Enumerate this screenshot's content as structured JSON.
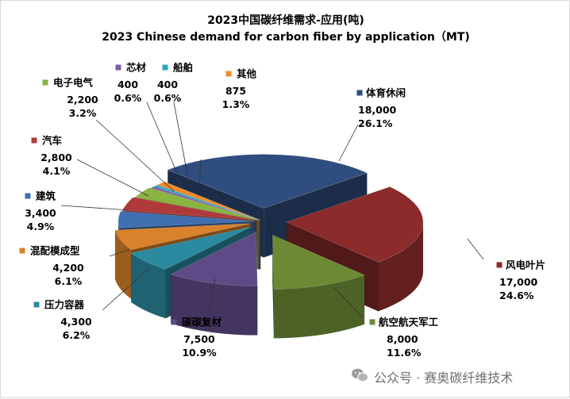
{
  "chart_data": {
    "type": "pie",
    "title": "2023中国碳纤维需求-应用(吨)",
    "subtitle": "2023 Chinese demand for carbon fiber by application（MT)",
    "slices": [
      {
        "name": "体育休闲",
        "value": "18,000",
        "num": 18000,
        "percent": "26.1%",
        "color": "#2f4d7e"
      },
      {
        "name": "风电叶片",
        "value": "17,000",
        "num": 17000,
        "percent": "24.6%",
        "color": "#8b2b2b"
      },
      {
        "name": "航空航天军工",
        "value": "8,000",
        "num": 8000,
        "percent": "11.6%",
        "color": "#6b8a33"
      },
      {
        "name": "碳碳复材",
        "value": "7,500",
        "num": 7500,
        "percent": "10.9%",
        "color": "#5e4a86"
      },
      {
        "name": "压力容器",
        "value": "4,300",
        "num": 4300,
        "percent": "6.2%",
        "color": "#2b8aa0"
      },
      {
        "name": "混配模成型",
        "value": "4,200",
        "num": 4200,
        "percent": "6.1%",
        "color": "#d9822b"
      },
      {
        "name": "建筑",
        "value": "3,400",
        "num": 3400,
        "percent": "4.9%",
        "color": "#3f6fb0"
      },
      {
        "name": "汽车",
        "value": "2,800",
        "num": 2800,
        "percent": "4.1%",
        "color": "#b03a3a"
      },
      {
        "name": "电子电气",
        "value": "2,200",
        "num": 2200,
        "percent": "3.2%",
        "color": "#8ab33f"
      },
      {
        "name": "芯材",
        "value": "400",
        "num": 400,
        "percent": "0.6%",
        "color": "#7a5fa8"
      },
      {
        "name": "船舶",
        "value": "400",
        "num": 400,
        "percent": "0.6%",
        "color": "#2ba7c0"
      },
      {
        "name": "其他",
        "value": "875",
        "num": 875,
        "percent": "1.3%",
        "color": "#f08a2b"
      }
    ]
  },
  "watermark": {
    "text": "公众号 · 赛奥碳纤维技术",
    "icon": "wechat-icon"
  }
}
